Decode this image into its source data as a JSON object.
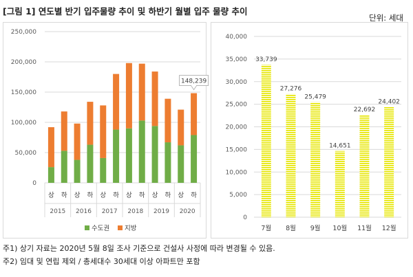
{
  "header": {
    "title": "[그림 1]  연도별 반기 입주물량 추이 및 하반기 월별 입주 물량 추이",
    "unit": "단위: 세대"
  },
  "chart_data": [
    {
      "type": "bar",
      "stacked": true,
      "x_sub": [
        "상",
        "하",
        "상",
        "하",
        "상",
        "하",
        "상",
        "하",
        "상",
        "하",
        "상",
        "하"
      ],
      "x_groups": [
        "2015",
        "2016",
        "2017",
        "2018",
        "2019",
        "2020"
      ],
      "series": [
        {
          "name": "수도권",
          "color": "#70ad47",
          "values": [
            26000,
            53000,
            38000,
            63000,
            41000,
            88000,
            90000,
            103000,
            94000,
            67000,
            62000,
            79000
          ]
        },
        {
          "name": "지방",
          "color": "#ed7d31",
          "values": [
            66000,
            65000,
            60000,
            71000,
            87000,
            92000,
            108000,
            94000,
            90000,
            72000,
            59000,
            69239
          ]
        }
      ],
      "annotation": {
        "index": 11,
        "text": "148,239"
      },
      "y_ticks": [
        "0",
        "50,000",
        "100,000",
        "150,000",
        "200,000",
        "250,000"
      ],
      "ylim": [
        0,
        250000
      ],
      "legend_position": "bottom",
      "grid": true
    },
    {
      "type": "bar",
      "categories": [
        "7월",
        "8월",
        "9월",
        "10월",
        "11월",
        "12월"
      ],
      "values": [
        33739,
        27276,
        25479,
        14651,
        22692,
        24402
      ],
      "value_labels": [
        "33,739",
        "27,276",
        "25,479",
        "14,651",
        "22,692",
        "24,402"
      ],
      "color": "#e6e600",
      "pattern": "horizontal-stripes",
      "y_ticks": [
        "0",
        "5,000",
        "10,000",
        "15,000",
        "20,000",
        "25,000",
        "30,000",
        "35,000",
        "40,000"
      ],
      "ylim": [
        0,
        40000
      ],
      "grid": true
    }
  ],
  "footnotes": [
    "주1) 상기 자료는 2020년 5월 8일 조사 기준으로 건설사 사정에 따라 변경될 수 있음.",
    "주2) 임대 및 연립 제외 / 총세대수 30세대 이상 아파트만 포함"
  ]
}
